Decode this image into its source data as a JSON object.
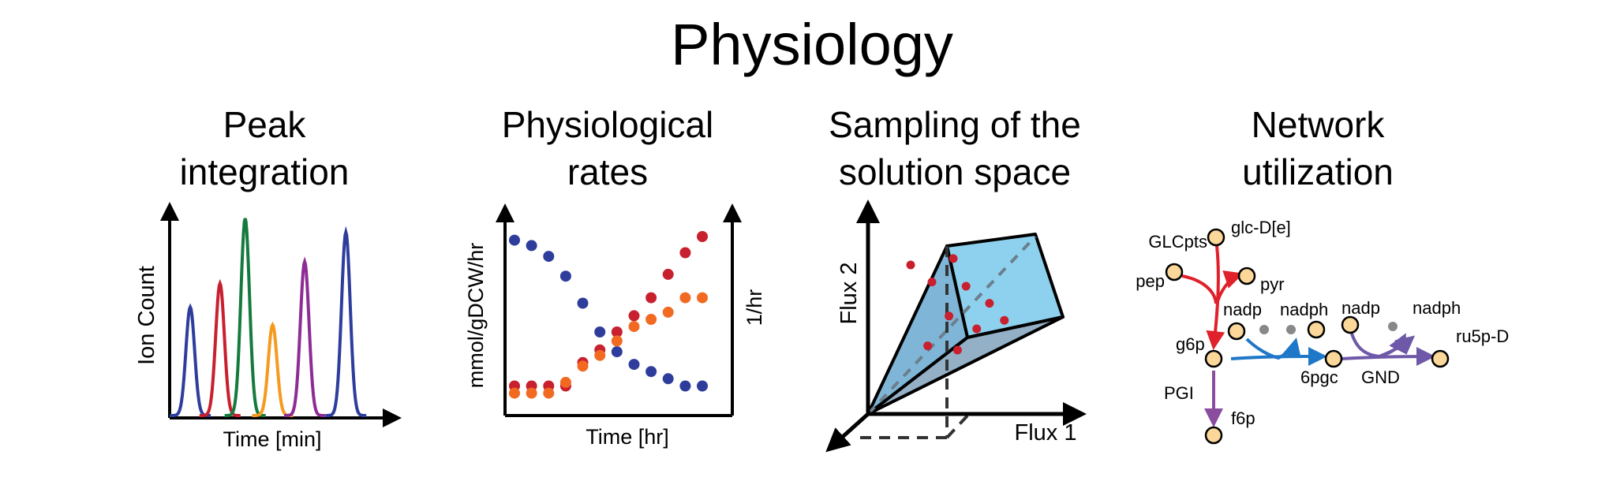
{
  "title": "Physiology",
  "panels": {
    "peak": {
      "title_line1": "Peak",
      "title_line2": "integration",
      "xlabel": "Time [min]",
      "ylabel": "Ion Count",
      "peaks": [
        {
          "color": "#2e3d9c",
          "height": 0.55
        },
        {
          "color": "#c8202e",
          "height": 0.67
        },
        {
          "color": "#157a3d",
          "height": 1.0
        },
        {
          "color": "#f59a1e",
          "height": 0.46
        },
        {
          "color": "#8e2c96",
          "height": 0.78
        },
        {
          "color": "#2e3d9c",
          "height": 0.93
        }
      ]
    },
    "rates": {
      "title_line1": "Physiological",
      "title_line2": "rates",
      "xlabel": "Time [hr]",
      "ylabel_left": "mmol/gDCW/hr",
      "ylabel_right": "1/hr"
    },
    "sampling": {
      "title_line1": "Sampling of the",
      "title_line2": "solution space",
      "xlabel": "Flux 1",
      "ylabel": "Flux 2"
    },
    "network": {
      "title_line1": "Network",
      "title_line2": "utilization",
      "labels": {
        "glcpts": "GLCpts",
        "glc": "glc-D[e]",
        "pep": "pep",
        "pyr": "pyr",
        "nadp1": "nadp",
        "nadph1": "nadph",
        "nadp2": "nadp",
        "nadph2": "nadph",
        "g6p": "g6p",
        "pgc": "6pgc",
        "gnd": "GND",
        "ru5p": "ru5p-D",
        "pgi": "PGI",
        "f6p": "f6p"
      },
      "colors": {
        "red": "#e0202a",
        "blue": "#1f77c8",
        "purple": "#6e58a8",
        "violet": "#8a4c9e",
        "node": "#fbd79a"
      }
    }
  },
  "chart_data": [
    {
      "type": "line",
      "title": "",
      "xlabel": "Time [min]",
      "ylabel": "Ion Count",
      "series": [
        {
          "x": [
            0.09,
            0.22,
            0.33,
            0.45,
            0.59,
            0.77
          ],
          "values": [
            0.55,
            0.67,
            1.0,
            0.46,
            0.78,
            0.93
          ]
        }
      ]
    },
    {
      "type": "scatter",
      "title": "",
      "xlabel": "Time [hr]",
      "ylabel": "mmol/gDCW/hr",
      "series": [
        {
          "color": "#2e3d9c",
          "x": [
            1,
            2,
            3,
            4,
            5,
            6,
            7,
            8,
            9,
            10,
            11,
            12
          ],
          "values": [
            9.0,
            8.7,
            8.1,
            7.0,
            5.5,
            3.9,
            2.8,
            2.1,
            1.7,
            1.3,
            0.9,
            0.9
          ]
        },
        {
          "color": "#c8202e",
          "x": [
            1,
            2,
            3,
            4,
            5,
            6,
            7,
            8,
            9,
            10,
            11,
            12
          ],
          "values": [
            0.9,
            0.9,
            0.9,
            0.9,
            2.2,
            2.9,
            3.9,
            4.8,
            5.8,
            7.1,
            8.3,
            9.2
          ]
        },
        {
          "color": "#f26a22",
          "x": [
            1,
            2,
            3,
            4,
            5,
            6,
            7,
            8,
            9,
            10,
            11,
            12
          ],
          "values": [
            0.5,
            0.5,
            0.5,
            1.1,
            2.0,
            2.6,
            3.4,
            4.2,
            4.6,
            5.0,
            5.8,
            5.8
          ]
        }
      ]
    },
    {
      "type": "scatter",
      "title": "",
      "xlabel": "Flux 1",
      "ylabel": "Flux 2",
      "series": [
        {
          "color": "#c8202e",
          "x": [
            0.2,
            0.3,
            0.4,
            0.46,
            0.57,
            0.38,
            0.51,
            0.64,
            0.28,
            0.42
          ],
          "values": [
            0.7,
            0.62,
            0.73,
            0.6,
            0.52,
            0.46,
            0.4,
            0.44,
            0.32,
            0.3
          ]
        }
      ]
    }
  ]
}
